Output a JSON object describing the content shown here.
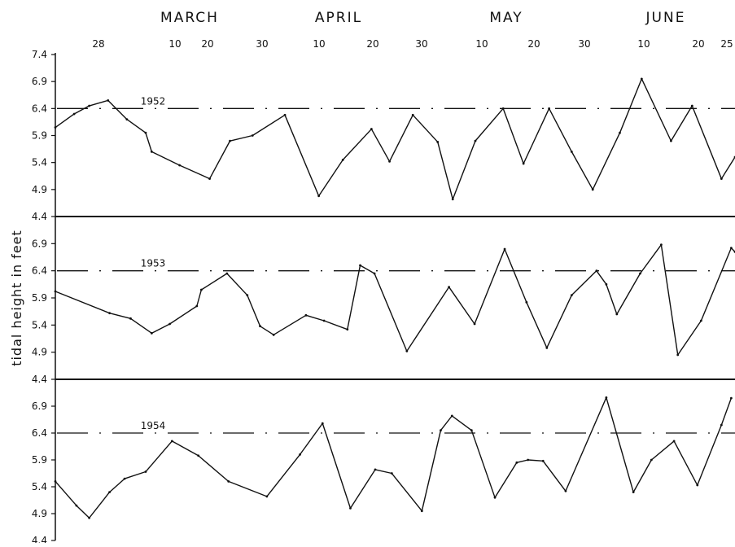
{
  "chart_data": {
    "type": "line",
    "ylabel": "tidal height in feet",
    "months": [
      "MARCH",
      "APRIL",
      "MAY",
      "JUNE"
    ],
    "date_ticks": [
      "28",
      "10",
      "20",
      "30",
      "10",
      "20",
      "30",
      "10",
      "20",
      "30",
      "10",
      "20",
      "25"
    ],
    "yticks": {
      "top_panel": [
        "7.4",
        "6.9",
        "6.4",
        "5.9",
        "5.4",
        "4.9",
        "4.4"
      ],
      "middle_panel": [
        "6.9",
        "6.4",
        "5.9",
        "5.4",
        "4.9",
        "4.4"
      ],
      "bottom_panel": [
        "6.9",
        "6.4",
        "5.9",
        "5.4",
        "4.9",
        "4.4"
      ]
    },
    "ylim": [
      4.4,
      7.4
    ],
    "reference_level": 6.4,
    "xlim_day": [
      0,
      903
    ],
    "panels": [
      {
        "name": "1952",
        "points": [
          [
            0,
            6.05
          ],
          [
            25,
            6.3
          ],
          [
            45,
            6.45
          ],
          [
            70,
            6.55
          ],
          [
            95,
            6.2
          ],
          [
            120,
            5.95
          ],
          [
            128,
            5.6
          ],
          [
            165,
            5.35
          ],
          [
            205,
            5.1
          ],
          [
            232,
            5.8
          ],
          [
            262,
            5.9
          ],
          [
            305,
            6.28
          ],
          [
            350,
            4.78
          ],
          [
            382,
            5.45
          ],
          [
            420,
            6.02
          ],
          [
            444,
            5.42
          ],
          [
            475,
            6.28
          ],
          [
            508,
            5.78
          ],
          [
            528,
            4.72
          ],
          [
            558,
            5.8
          ],
          [
            595,
            6.4
          ],
          [
            622,
            5.38
          ],
          [
            656,
            6.4
          ],
          [
            686,
            5.6
          ],
          [
            714,
            4.9
          ],
          [
            750,
            5.95
          ],
          [
            779,
            6.95
          ],
          [
            818,
            5.8
          ],
          [
            846,
            6.45
          ],
          [
            885,
            5.1
          ],
          [
            903,
            5.5
          ]
        ]
      },
      {
        "name": "1953",
        "points": [
          [
            0,
            6.02
          ],
          [
            72,
            5.62
          ],
          [
            100,
            5.52
          ],
          [
            128,
            5.25
          ],
          [
            152,
            5.42
          ],
          [
            188,
            5.75
          ],
          [
            194,
            6.05
          ],
          [
            228,
            6.35
          ],
          [
            255,
            5.95
          ],
          [
            272,
            5.38
          ],
          [
            290,
            5.22
          ],
          [
            333,
            5.58
          ],
          [
            357,
            5.48
          ],
          [
            388,
            5.32
          ],
          [
            405,
            6.5
          ],
          [
            424,
            6.35
          ],
          [
            467,
            4.92
          ],
          [
            523,
            6.1
          ],
          [
            557,
            5.42
          ],
          [
            597,
            6.8
          ],
          [
            626,
            5.82
          ],
          [
            653,
            4.98
          ],
          [
            686,
            5.95
          ],
          [
            719,
            6.4
          ],
          [
            732,
            6.15
          ],
          [
            746,
            5.6
          ],
          [
            777,
            6.35
          ],
          [
            805,
            6.88
          ],
          [
            827,
            4.85
          ],
          [
            858,
            5.48
          ],
          [
            898,
            6.82
          ],
          [
            903,
            6.75
          ]
        ]
      },
      {
        "name": "1954",
        "points": [
          [
            0,
            5.5
          ],
          [
            28,
            5.05
          ],
          [
            45,
            4.82
          ],
          [
            72,
            5.3
          ],
          [
            92,
            5.55
          ],
          [
            120,
            5.68
          ],
          [
            155,
            6.25
          ],
          [
            190,
            5.98
          ],
          [
            230,
            5.5
          ],
          [
            281,
            5.22
          ],
          [
            325,
            6.0
          ],
          [
            355,
            6.58
          ],
          [
            392,
            5.0
          ],
          [
            425,
            5.72
          ],
          [
            447,
            5.65
          ],
          [
            487,
            4.95
          ],
          [
            512,
            6.45
          ],
          [
            527,
            6.72
          ],
          [
            553,
            6.45
          ],
          [
            584,
            5.2
          ],
          [
            613,
            5.85
          ],
          [
            628,
            5.9
          ],
          [
            648,
            5.88
          ],
          [
            678,
            5.32
          ],
          [
            732,
            7.06
          ],
          [
            768,
            5.3
          ],
          [
            792,
            5.9
          ],
          [
            822,
            6.25
          ],
          [
            853,
            5.43
          ],
          [
            885,
            6.55
          ],
          [
            898,
            7.05
          ]
        ]
      }
    ]
  }
}
